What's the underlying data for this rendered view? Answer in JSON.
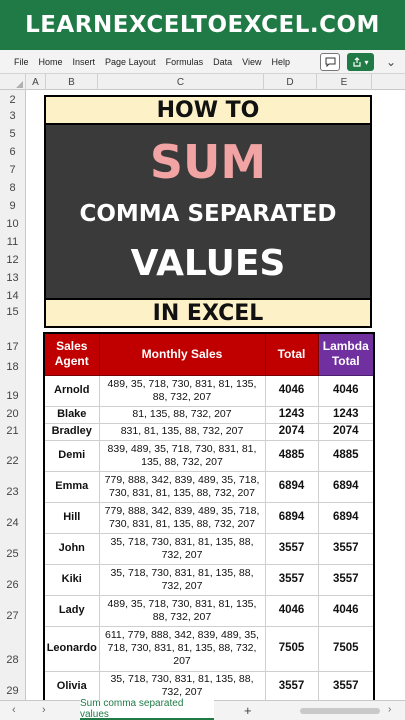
{
  "banner": {
    "title": "LEARNEXCELTOEXCEL.COM"
  },
  "ribbon": {
    "tabs": [
      "File",
      "Home",
      "Insert",
      "Page Layout",
      "Formulas",
      "Data",
      "View",
      "Help"
    ]
  },
  "columns": [
    "A",
    "B",
    "C",
    "D",
    "E"
  ],
  "rows": [
    "2",
    "3",
    "5",
    "6",
    "7",
    "8",
    "9",
    "10",
    "11",
    "12",
    "13",
    "14",
    "15",
    "17",
    "18",
    "19",
    "20",
    "21",
    "22",
    "23",
    "24",
    "25",
    "26",
    "27",
    "28",
    "29"
  ],
  "title_box": {
    "line_top": "HOW TO",
    "line_sum": "SUM",
    "line_2": "COMMA SEPARATED",
    "line_3": "VALUES",
    "line_bottom": "IN EXCEL"
  },
  "table": {
    "headers": {
      "agent": "Sales Agent",
      "monthly": "Monthly Sales",
      "total": "Total",
      "lambda": "Lambda Total"
    },
    "rows": [
      {
        "agent": "Arnold",
        "sales": "489, 35, 718, 730, 831, 81, 135, 88, 732, 207",
        "total": "4046",
        "lambda": "4046"
      },
      {
        "agent": "Blake",
        "sales": "81, 135, 88, 732, 207",
        "total": "1243",
        "lambda": "1243"
      },
      {
        "agent": "Bradley",
        "sales": "831, 81, 135, 88, 732, 207",
        "total": "2074",
        "lambda": "2074"
      },
      {
        "agent": "Demi",
        "sales": "839, 489, 35, 718, 730, 831, 81, 135, 88, 732, 207",
        "total": "4885",
        "lambda": "4885"
      },
      {
        "agent": "Emma",
        "sales": "779, 888, 342, 839, 489, 35, 718, 730, 831, 81, 135, 88, 732, 207",
        "total": "6894",
        "lambda": "6894"
      },
      {
        "agent": "Hill",
        "sales": "779, 888, 342, 839, 489, 35, 718, 730, 831, 81, 135, 88, 732, 207",
        "total": "6894",
        "lambda": "6894"
      },
      {
        "agent": "John",
        "sales": "35, 718, 730, 831, 81, 135, 88, 732, 207",
        "total": "3557",
        "lambda": "3557"
      },
      {
        "agent": "Kiki",
        "sales": "35, 718, 730, 831, 81, 135, 88, 732, 207",
        "total": "3557",
        "lambda": "3557"
      },
      {
        "agent": "Lady",
        "sales": "489, 35, 718, 730, 831, 81, 135, 88, 732, 207",
        "total": "4046",
        "lambda": "4046"
      },
      {
        "agent": "Leonardo",
        "sales": "611, 779, 888, 342, 839, 489, 35, 718, 730, 831, 81, 135, 88, 732, 207",
        "total": "7505",
        "lambda": "7505"
      },
      {
        "agent": "Olivia",
        "sales": "35, 718, 730, 831, 81, 135, 88, 732, 207",
        "total": "3557",
        "lambda": "3557"
      }
    ]
  },
  "sheet_tabs": {
    "active": "Sum comma separated values",
    "add_label": "+"
  },
  "icons": {
    "comment": "comment-icon",
    "share": "share-icon",
    "more": "chevron-down-icon"
  }
}
